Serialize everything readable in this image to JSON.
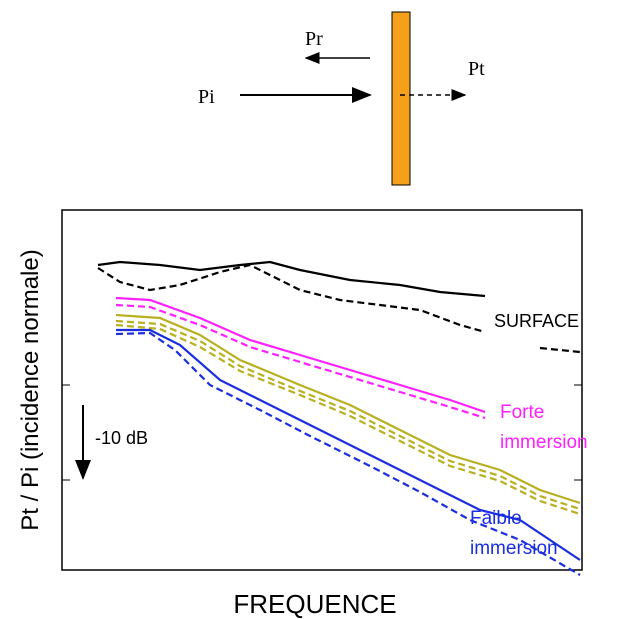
{
  "diagram": {
    "reflected": "Pr",
    "incident": "Pi",
    "transmitted": "Pt"
  },
  "chart": {
    "ylabel": "Pt / Pi (incidence normale)",
    "xlabel": "FREQUENCE",
    "scale_note": "-10 dB",
    "labels": {
      "surface": "SURFACE",
      "forte": [
        "Forte",
        "immersion"
      ],
      "faible": [
        "Faible",
        "immersion"
      ]
    }
  }
}
